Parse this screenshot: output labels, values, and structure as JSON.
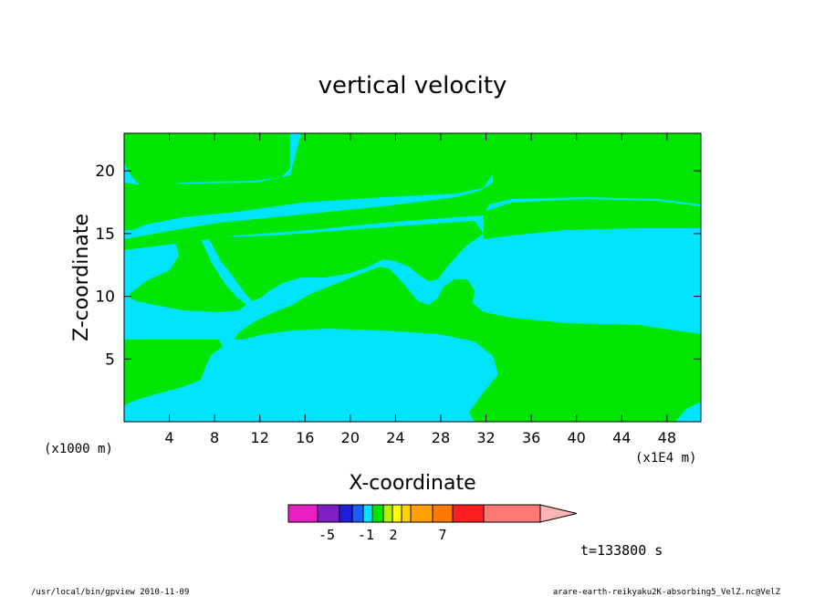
{
  "chart_data": {
    "type": "contour",
    "title": "vertical velocity",
    "xlabel": "X-coordinate",
    "ylabel": "Z-coordinate",
    "x_unit_left": "(x1000 m)",
    "x_unit_right": "(x1E4 m)",
    "xlim": [
      0,
      51
    ],
    "ylim": [
      0,
      23
    ],
    "x_ticks": [
      "4",
      "8",
      "12",
      "16",
      "20",
      "24",
      "28",
      "32",
      "36",
      "40",
      "44",
      "48"
    ],
    "y_ticks": [
      "5",
      "10",
      "15",
      "20"
    ],
    "time_label": "t=133800 s",
    "colorbar": {
      "colors": [
        "#e81ec2",
        "#7f1ec2",
        "#1e1ed8",
        "#1e5cff",
        "#00e5ff",
        "#00e600",
        "#b4f000",
        "#ffff00",
        "#ffd200",
        "#ffa000",
        "#ff7800",
        "#ff1e1e",
        "#ff7878",
        "#ffb4b4"
      ],
      "labels": [
        "-5",
        "-1",
        "2",
        "7"
      ],
      "label_values": [
        -5,
        -1,
        2,
        7
      ]
    },
    "regions": [
      {
        "value_sign": "positive",
        "color": "#00e600"
      },
      {
        "value_sign": "negative",
        "color": "#00e5ff"
      }
    ]
  },
  "footer": {
    "left": "/usr/local/bin/gpview  2010-11-09",
    "right": "arare-earth-reikyaku2K-absorbing5_VelZ.nc@VelZ"
  }
}
